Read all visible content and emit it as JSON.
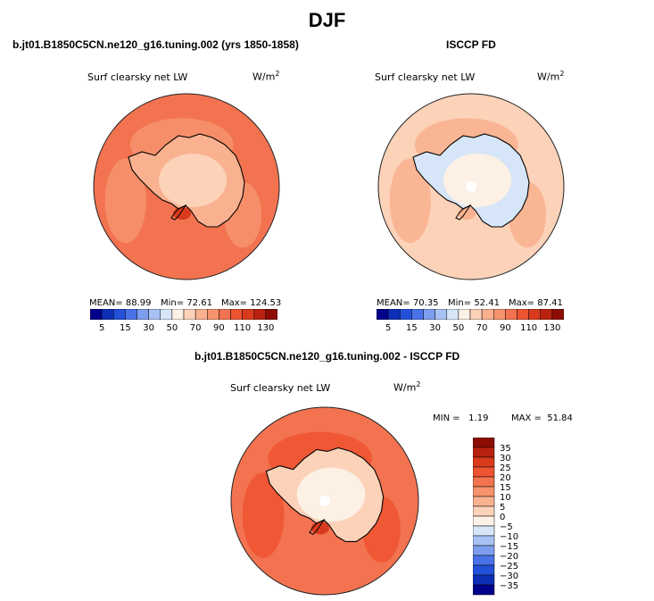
{
  "title": "DJF",
  "palette": [
    "#00008b",
    "#0c2fb5",
    "#2350d8",
    "#4a72e8",
    "#7d9eef",
    "#a9c2f4",
    "#d6e6f8",
    "#fdf0e4",
    "#fcd2b8",
    "#f9b190",
    "#f6926c",
    "#f37351",
    "#ee5432",
    "#d93a1c",
    "#b8220f",
    "#8c0d04"
  ],
  "panel_left": {
    "title": "b.jt01.B1850C5CN.ne120_g16.tuning.002 (yrs 1850-1858)",
    "variable": "Surf clearsky net LW",
    "units": "W/m",
    "units_sup": "2",
    "mean_label": "MEAN=",
    "mean": "88.99",
    "min_label": "Min=",
    "min": "72.61",
    "max_label": "Max=",
    "max": "124.53",
    "colors": {
      "ocean": "#f37351",
      "ocean_alt": "#f6926c",
      "land": "#fcd2b8",
      "land_alt": "#f9b190",
      "hot": "#d93a1c"
    }
  },
  "panel_right": {
    "title": "ISCCP FD",
    "variable": "Surf clearsky net LW",
    "units": "W/m",
    "units_sup": "2",
    "mean_label": "MEAN=",
    "mean": "70.35",
    "min_label": "Min=",
    "min": "52.41",
    "max_label": "Max=",
    "max": "87.41",
    "colors": {
      "ocean": "#fcd2b8",
      "ocean_alt": "#f9b190",
      "land": "#fdf0e4",
      "land_alt": "#d6e6f8",
      "hot": "#f9b190"
    }
  },
  "panel_diff": {
    "title": "b.jt01.B1850C5CN.ne120_g16.tuning.002 - ISCCP FD",
    "variable": "Surf clearsky net LW",
    "units": "W/m",
    "units_sup": "2",
    "min_label": "MIN =",
    "min": "1.19",
    "max_label": "MAX =",
    "max": "51.84",
    "colors": {
      "ocean": "#f37351",
      "ocean_alt": "#ee5432",
      "land": "#fdf0e4",
      "land_alt": "#fcd2b8",
      "hot": "#d93a1c"
    }
  },
  "colorbar_h_ticks": [
    "5",
    "15",
    "30",
    "50",
    "70",
    "90",
    "110",
    "130"
  ],
  "colorbar_v_labels": [
    "35",
    "30",
    "25",
    "20",
    "15",
    "10",
    "5",
    "0",
    "−5",
    "−10",
    "−15",
    "−20",
    "−25",
    "−30",
    "−35"
  ],
  "colorbar_v_colors": [
    "#8c0d04",
    "#b8220f",
    "#d93a1c",
    "#ee5432",
    "#f37351",
    "#f6926c",
    "#f9b190",
    "#fcd2b8",
    "#fdf0e4",
    "#d6e6f8",
    "#a9c2f4",
    "#7d9eef",
    "#4a72e8",
    "#2350d8",
    "#0c2fb5",
    "#00008b"
  ]
}
